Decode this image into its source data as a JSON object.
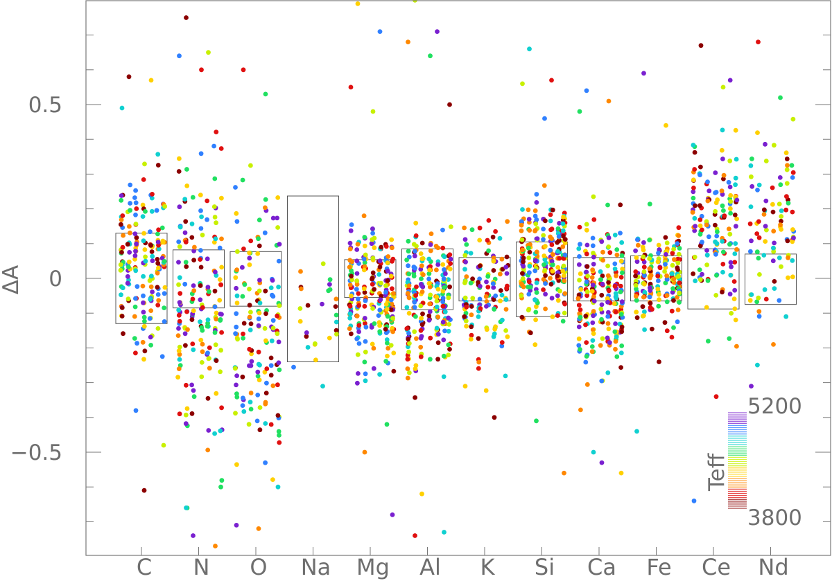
{
  "chart_data": {
    "type": "scatter",
    "title": "",
    "xlabel": "",
    "ylabel": "ΔA",
    "categories": [
      "C",
      "N",
      "O",
      "Na",
      "Mg",
      "Al",
      "K",
      "Si",
      "Ca",
      "Fe",
      "Ce",
      "Nd"
    ],
    "ylim": [
      -0.81,
      0.8
    ],
    "yticks": [
      0.5,
      0,
      -0.5
    ],
    "ytick_labels": [
      "0.5",
      "0",
      "−0.5"
    ],
    "grid": false,
    "colorbar": {
      "label": "Teff",
      "min": 3800,
      "max": 5200,
      "min_label": "3800",
      "max_label": "5200",
      "colors": [
        "#8b0000",
        "#e01010",
        "#ff8800",
        "#ffd000",
        "#c8f000",
        "#20e060",
        "#10d0d0",
        "#3080ff",
        "#7a20d0"
      ]
    },
    "boxes": [
      {
        "element": "C",
        "low": -0.13,
        "high": 0.13
      },
      {
        "element": "N",
        "low": -0.085,
        "high": 0.082
      },
      {
        "element": "O",
        "low": -0.08,
        "high": 0.077
      },
      {
        "element": "Na",
        "low": -0.24,
        "high": 0.237
      },
      {
        "element": "Mg",
        "low": -0.055,
        "high": 0.054
      },
      {
        "element": "Al",
        "low": -0.09,
        "high": 0.085
      },
      {
        "element": "K",
        "low": -0.065,
        "high": 0.06
      },
      {
        "element": "Si",
        "low": -0.11,
        "high": 0.105
      },
      {
        "element": "Ca",
        "low": -0.065,
        "high": 0.06
      },
      {
        "element": "Fe",
        "low": -0.065,
        "high": 0.065
      },
      {
        "element": "Ce",
        "low": -0.088,
        "high": 0.085
      },
      {
        "element": "Nd",
        "low": -0.075,
        "high": 0.07
      }
    ],
    "series": [
      {
        "element": "C",
        "n": 180,
        "center": 0.05,
        "spread": 0.13,
        "outliers": [
          0.58,
          0.57,
          0.49,
          -0.61,
          -0.48,
          -0.38
        ]
      },
      {
        "element": "N",
        "n": 170,
        "center": -0.06,
        "spread": 0.18,
        "outliers": [
          0.75,
          0.65,
          0.64,
          0.6,
          -0.6,
          -0.74,
          -0.77,
          -0.66
        ]
      },
      {
        "element": "O",
        "n": 150,
        "center": -0.15,
        "spread": 0.17,
        "outliers": [
          0.6,
          0.53,
          -0.71,
          -0.72,
          -0.6
        ]
      },
      {
        "element": "Na",
        "n": 25,
        "center": -0.1,
        "spread": 0.09,
        "outliers": [
          0.02,
          -0.31
        ]
      },
      {
        "element": "Mg",
        "n": 230,
        "center": -0.05,
        "spread": 0.1,
        "outliers": [
          0.79,
          0.71,
          0.55,
          0.48,
          -0.68,
          -0.5,
          -0.42
        ]
      },
      {
        "element": "Al",
        "n": 230,
        "center": -0.06,
        "spread": 0.1,
        "outliers": [
          0.8,
          0.71,
          0.68,
          0.64,
          0.5,
          -0.62,
          -0.73,
          -0.74
        ]
      },
      {
        "element": "K",
        "n": 130,
        "center": -0.04,
        "spread": 0.09,
        "outliers": [
          0.14,
          -0.4,
          -0.31
        ]
      },
      {
        "element": "Si",
        "n": 240,
        "center": 0.05,
        "spread": 0.08,
        "outliers": [
          0.66,
          0.57,
          0.56,
          0.46,
          -0.56,
          -0.41
        ]
      },
      {
        "element": "Ca",
        "n": 220,
        "center": -0.04,
        "spread": 0.1,
        "outliers": [
          0.54,
          0.51,
          0.48,
          -0.53,
          -0.56,
          -0.5
        ]
      },
      {
        "element": "Fe",
        "n": 190,
        "center": 0.0,
        "spread": 0.06,
        "outliers": [
          0.59,
          0.44,
          -0.44,
          -0.24
        ]
      },
      {
        "element": "Ce",
        "n": 150,
        "center": 0.14,
        "spread": 0.13,
        "outliers": [
          0.67,
          0.55,
          -0.64,
          -0.34
        ]
      },
      {
        "element": "Nd",
        "n": 90,
        "center": 0.15,
        "spread": 0.13,
        "outliers": [
          0.68,
          0.52,
          -0.31,
          -0.19
        ]
      }
    ]
  }
}
